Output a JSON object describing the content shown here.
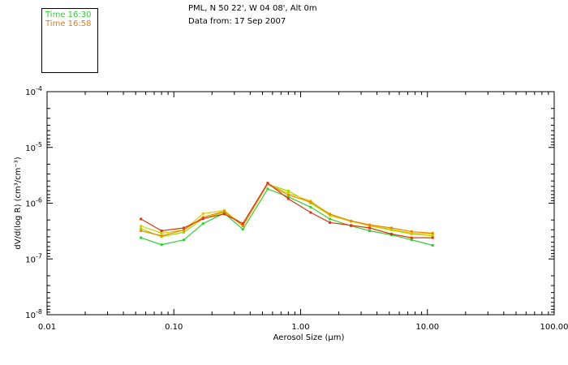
{
  "header": {
    "location": "PML, N 50 22', W 04 08', Alt 0m",
    "date_line": "Data from: 17 Sep 2007"
  },
  "legend": [
    {
      "label": "Time 16:30",
      "color": "#33cc33"
    },
    {
      "label": "Time 16:58",
      "color": "#ee7700"
    }
  ],
  "chart_data": {
    "type": "line",
    "xscale": "log",
    "yscale": "log",
    "xlim": [
      0.01,
      100
    ],
    "ylim": [
      1e-08,
      0.0001
    ],
    "xlabel": "Aerosol Size (μm)",
    "ylabel": "dV/d(log R) (cm³/cm⁻³)",
    "x_tick_labels": [
      "0.01",
      "0.10",
      "1.00",
      "10.00",
      "100.00"
    ],
    "y_tick_labels": [
      {
        "base": "10",
        "exp": "-8"
      },
      {
        "base": "10",
        "exp": "-7"
      },
      {
        "base": "10",
        "exp": "-6"
      },
      {
        "base": "10",
        "exp": "-5"
      },
      {
        "base": "10",
        "exp": "-4"
      }
    ],
    "x": [
      0.055,
      0.08,
      0.12,
      0.17,
      0.25,
      0.35,
      0.55,
      0.8,
      1.2,
      1.7,
      2.5,
      3.5,
      5.2,
      7.5,
      11.0
    ],
    "series": [
      {
        "color": "#33cc33",
        "values": [
          2.4e-07,
          1.8e-07,
          2.2e-07,
          4.3e-07,
          6.6e-07,
          3.4e-07,
          1.8e-06,
          1.3e-06,
          8.5e-07,
          5.2e-07,
          3.9e-07,
          3.2e-07,
          2.7e-07,
          2.2e-07,
          1.75e-07
        ]
      },
      {
        "color": "#99dd00",
        "values": [
          3.5e-07,
          2.5e-07,
          3e-07,
          5.3e-07,
          6.9e-07,
          4.3e-07,
          2.2e-06,
          1.65e-06,
          1e-06,
          6.1e-07,
          4.8e-07,
          3.9e-07,
          3.3e-07,
          2.8e-07,
          2.6e-07
        ]
      },
      {
        "color": "#ddcc00",
        "values": [
          3.9e-07,
          2.9e-07,
          3.3e-07,
          6.5e-07,
          7.4e-07,
          4e-07,
          2.2e-06,
          1.5e-06,
          1.1e-06,
          6e-07,
          4.7e-07,
          4e-07,
          3.4e-07,
          2.9e-07,
          2.8e-07
        ]
      },
      {
        "color": "#ee8800",
        "values": [
          3.2e-07,
          2.6e-07,
          3.3e-07,
          5.6e-07,
          7.1e-07,
          3.9e-07,
          2.2e-06,
          1.4e-06,
          1.05e-06,
          6.4e-07,
          4.8e-07,
          4.1e-07,
          3.6e-07,
          3.1e-07,
          2.9e-07
        ]
      },
      {
        "color": "#dd3311",
        "values": [
          5.2e-07,
          3.2e-07,
          3.6e-07,
          5.3e-07,
          6.4e-07,
          4.3e-07,
          2.3e-06,
          1.2e-06,
          6.8e-07,
          4.5e-07,
          4e-07,
          3.6e-07,
          2.8e-07,
          2.4e-07,
          2.4e-07
        ]
      }
    ]
  }
}
